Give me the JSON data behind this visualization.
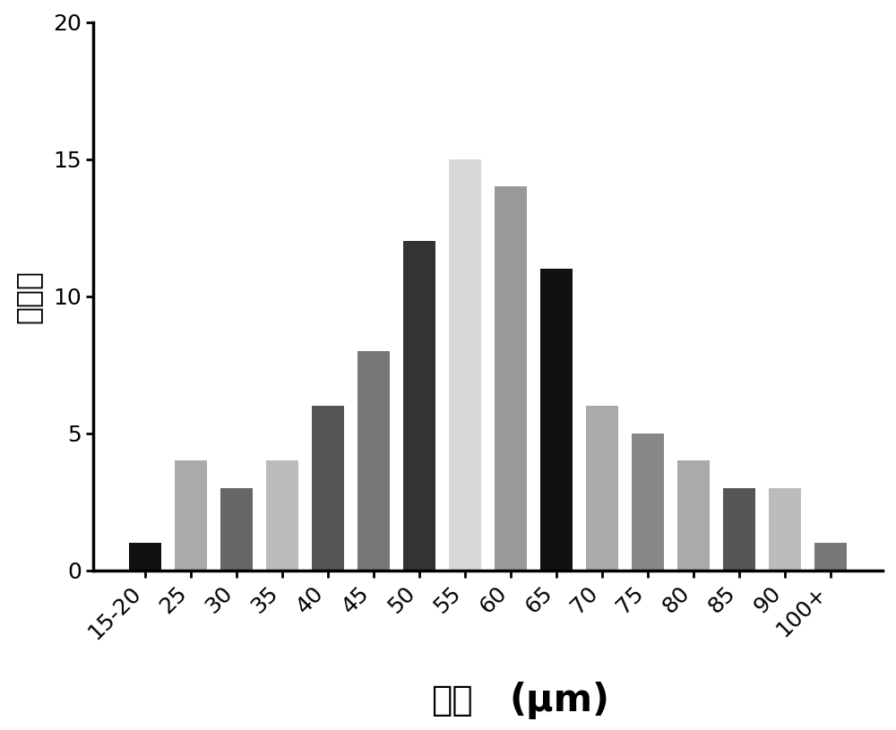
{
  "categories": [
    "15-20",
    "25",
    "30",
    "35",
    "40",
    "45",
    "50",
    "55",
    "60",
    "65",
    "70",
    "75",
    "80",
    "85",
    "90",
    "100+"
  ],
  "values": [
    1,
    4,
    3,
    4,
    6,
    8,
    12,
    15,
    14,
    11,
    6,
    5,
    4,
    3,
    3,
    1
  ],
  "bar_colors": [
    "#111111",
    "#aaaaaa",
    "#666666",
    "#bbbbbb",
    "#555555",
    "#777777",
    "#333333",
    "#d8d8d8",
    "#999999",
    "#111111",
    "#aaaaaa",
    "#888888",
    "#aaaaaa",
    "#555555",
    "#bbbbbb",
    "#777777"
  ],
  "ylabel": "百分比",
  "xlabel": "粒径 (μm)",
  "xlabel_chinese": "粒径",
  "xlabel_unit": "(μm)",
  "ylim": [
    0,
    20
  ],
  "yticks": [
    0,
    5,
    10,
    15,
    20
  ],
  "background_color": "#ffffff",
  "ylabel_fontsize": 24,
  "xlabel_fontsize_cn": 28,
  "xlabel_fontsize_unit": 30,
  "tick_fontsize": 18,
  "bar_width": 0.7
}
